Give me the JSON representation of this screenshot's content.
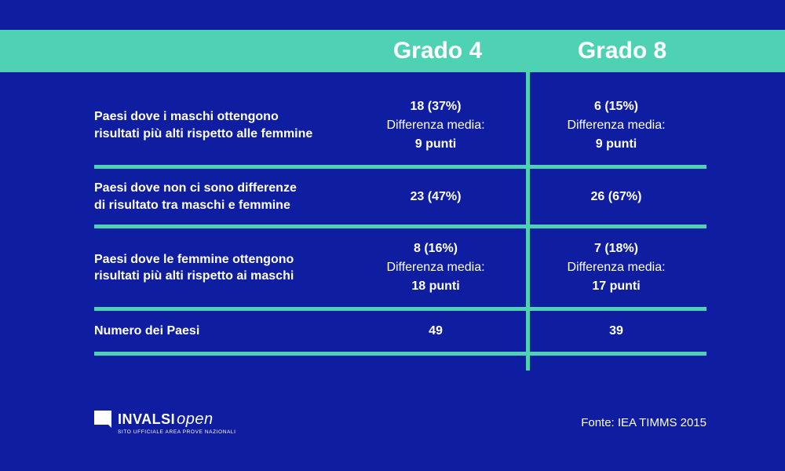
{
  "colors": {
    "background": "#0f1ea0",
    "accent": "#4fd1b3",
    "text": "#ffffff"
  },
  "header": {
    "col1": "Grado 4",
    "col2": "Grado 8"
  },
  "rows": [
    {
      "label_line1": "Paesi dove i maschi ottengono",
      "label_line2": "risultati più alti rispetto alle femmine",
      "col1": {
        "stat": "18 (37%)",
        "diff_label": "Differenza media:",
        "diff_value": "9 punti"
      },
      "col2": {
        "stat": "6 (15%)",
        "diff_label": "Differenza media:",
        "diff_value": "9 punti"
      }
    },
    {
      "label_line1": "Paesi dove non ci sono differenze",
      "label_line2": "di risultato tra maschi e femmine",
      "col1": {
        "stat": "23 (47%)"
      },
      "col2": {
        "stat": "26 (67%)"
      }
    },
    {
      "label_line1": "Paesi dove le femmine ottengono",
      "label_line2": "risultati più alti rispetto ai maschi",
      "col1": {
        "stat": "8 (16%)",
        "diff_label": "Differenza media:",
        "diff_value": "18 punti"
      },
      "col2": {
        "stat": "7 (18%)",
        "diff_label": "Differenza media:",
        "diff_value": "17 punti"
      }
    },
    {
      "label_line1": "Numero dei Paesi",
      "label_line2": "",
      "col1": {
        "stat": "49"
      },
      "col2": {
        "stat": "39"
      }
    }
  ],
  "footer": {
    "logo_main": "INVALSI",
    "logo_open": "open",
    "logo_sub": "SITO UFFICIALE AREA PROVE NAZIONALI",
    "source": "Fonte: IEA TIMMS 2015"
  }
}
